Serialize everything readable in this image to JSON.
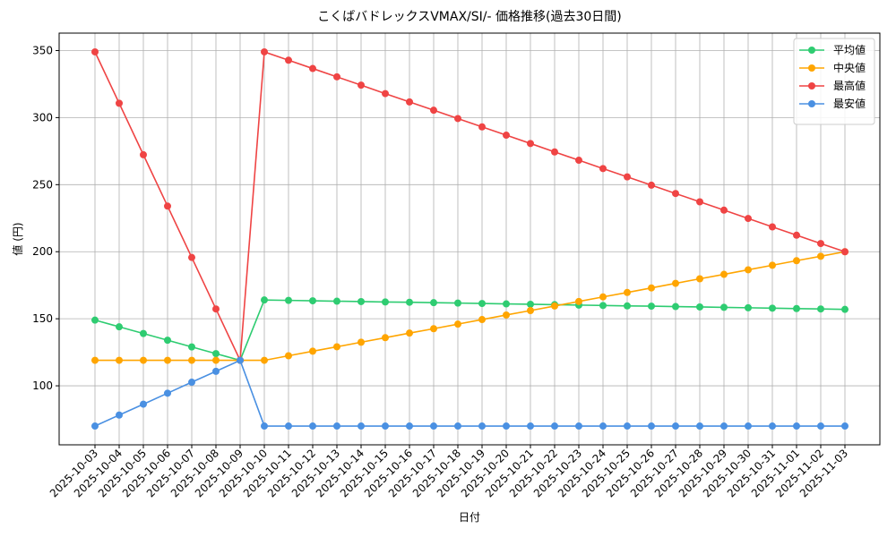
{
  "chart_data": {
    "type": "line",
    "title": "こくばバドレックスVMAX/SI/- 価格推移(過去30日間)",
    "x_label": "日付",
    "y_label": "値 (円)",
    "categories": [
      "2025-10-03",
      "2025-10-04",
      "2025-10-05",
      "2025-10-06",
      "2025-10-07",
      "2025-10-08",
      "2025-10-09",
      "2025-10-10",
      "2025-10-11",
      "2025-10-12",
      "2025-10-13",
      "2025-10-14",
      "2025-10-15",
      "2025-10-16",
      "2025-10-17",
      "2025-10-18",
      "2025-10-19",
      "2025-10-20",
      "2025-10-21",
      "2025-10-22",
      "2025-10-23",
      "2025-10-24",
      "2025-10-25",
      "2025-10-26",
      "2025-10-27",
      "2025-10-28",
      "2025-10-29",
      "2025-10-30",
      "2025-10-31",
      "2025-11-01",
      "2025-11-02",
      "2025-11-03"
    ],
    "series": [
      {
        "name": "平均値",
        "color": "#2ecc71",
        "values": [
          149,
          144,
          139,
          134,
          129,
          124,
          119,
          164,
          163.7,
          163.4,
          163.1,
          162.8,
          162.5,
          162.3,
          162,
          161.7,
          161.4,
          161.1,
          160.8,
          160.5,
          160.2,
          159.9,
          159.6,
          159.4,
          159.1,
          158.8,
          158.5,
          158.2,
          157.9,
          157.6,
          157.3,
          157
        ]
      },
      {
        "name": "中央値",
        "color": "#ffa500",
        "values": [
          119,
          119,
          119,
          119,
          119,
          119,
          119,
          119,
          122.4,
          125.8,
          129.1,
          132.5,
          135.9,
          139.3,
          142.6,
          146,
          149.4,
          152.8,
          156.1,
          159.5,
          162.9,
          166.3,
          169.6,
          173,
          176.4,
          179.8,
          183.1,
          186.5,
          189.9,
          193.3,
          196.6,
          200
        ]
      },
      {
        "name": "最高値",
        "color": "#ef4444",
        "values": [
          349,
          310.7,
          272.3,
          234,
          195.7,
          157.3,
          119,
          349,
          342.8,
          336.6,
          330.4,
          324.2,
          317.9,
          311.7,
          305.5,
          299.3,
          293.1,
          286.9,
          280.7,
          274.4,
          268.2,
          262,
          255.8,
          249.6,
          243.4,
          237.2,
          231,
          224.8,
          218.5,
          212.3,
          206.1,
          200
        ]
      },
      {
        "name": "最安値",
        "color": "#4a90e2",
        "values": [
          70,
          78.2,
          86.3,
          94.5,
          102.7,
          110.8,
          119,
          70,
          70,
          70,
          70,
          70,
          70,
          70,
          70,
          70,
          70,
          70,
          70,
          70,
          70,
          70,
          70,
          70,
          70,
          70,
          70,
          70,
          70,
          70,
          70,
          70
        ]
      }
    ],
    "ylim": [
      56,
      363
    ],
    "yticks": [
      100,
      150,
      200,
      250,
      300,
      350
    ],
    "grid": true,
    "legend": "upper right"
  }
}
